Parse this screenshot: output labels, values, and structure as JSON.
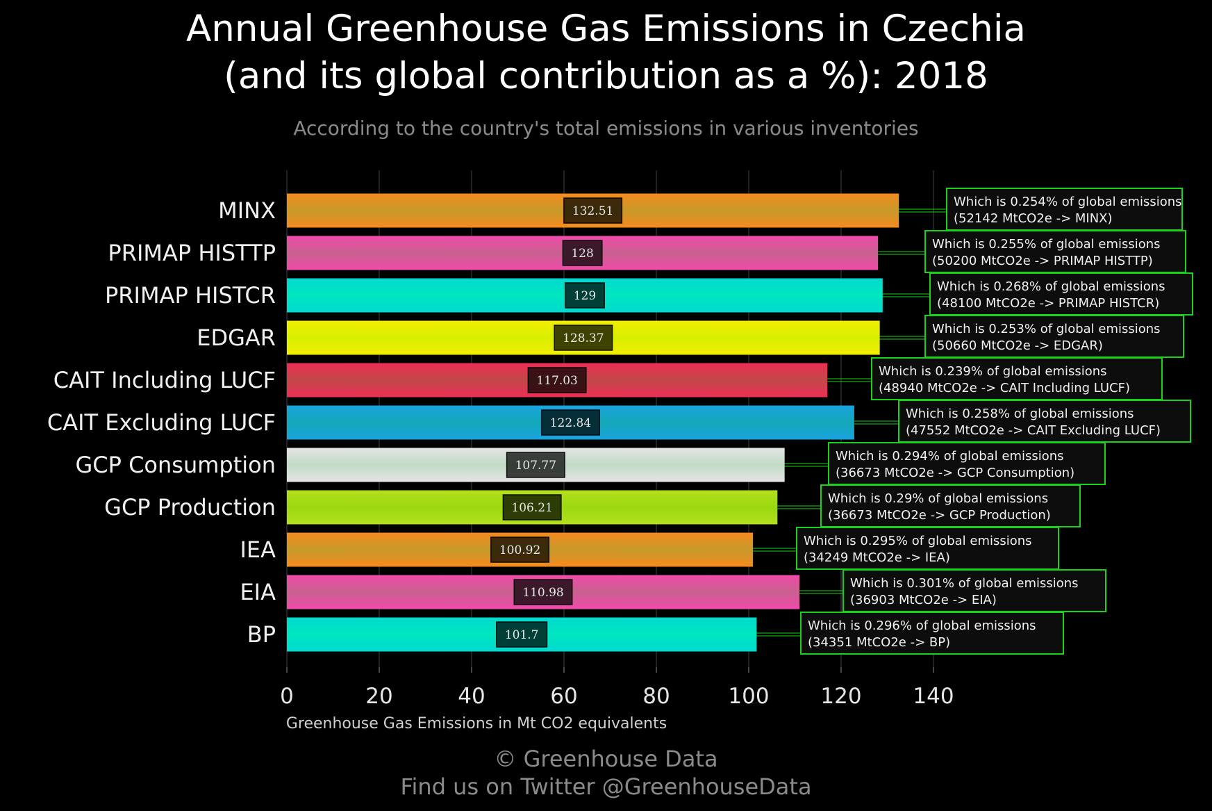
{
  "title_line1": "Annual Greenhouse Gas Emissions in Czechia",
  "title_line2": "(and its global contribution as a %): 2018",
  "subtitle": "According to the country's total emissions in various inventories",
  "footer_line1": "© Greenhouse Data",
  "footer_line2": "Find us on Twitter @GreenhouseData",
  "chart_data": {
    "type": "bar",
    "orientation": "horizontal",
    "xlabel": "Greenhouse Gas Emissions in Mt CO2 equivalents",
    "xlim": [
      0,
      150
    ],
    "xticks": [
      0,
      20,
      40,
      60,
      80,
      100,
      120,
      140
    ],
    "grid": "vertical",
    "categories": [
      "MINX",
      "PRIMAP HISTTP",
      "PRIMAP HISTCR",
      "EDGAR",
      "CAIT Including LUCF",
      "CAIT Excluding LUCF",
      "GCP Consumption",
      "GCP Production",
      "IEA",
      "EIA",
      "BP"
    ],
    "values": [
      132.51,
      128,
      129,
      128.37,
      117.03,
      122.84,
      107.77,
      106.21,
      100.92,
      110.98,
      101.7
    ],
    "value_labels": [
      "132.51",
      "128",
      "129",
      "128.37",
      "117.03",
      "122.84",
      "107.77",
      "106.21",
      "100.92",
      "110.98",
      "101.7"
    ],
    "annotations": [
      {
        "line1": "Which is 0.254% of global emissions",
        "line2": "(52142 MtCO2e -> MINX)"
      },
      {
        "line1": "Which is 0.255% of global emissions",
        "line2": "(50200 MtCO2e -> PRIMAP HISTTP)"
      },
      {
        "line1": "Which is 0.268% of global emissions",
        "line2": "(48100 MtCO2e -> PRIMAP HISTCR)"
      },
      {
        "line1": "Which is 0.253% of global emissions",
        "line2": "(50660 MtCO2e -> EDGAR)"
      },
      {
        "line1": "Which is 0.239% of global emissions",
        "line2": "(48940 MtCO2e -> CAIT Including LUCF)"
      },
      {
        "line1": "Which is 0.258% of global emissions",
        "line2": "(47552 MtCO2e -> CAIT Excluding LUCF)"
      },
      {
        "line1": "Which is 0.294% of global emissions",
        "line2": "(36673 MtCO2e -> GCP Consumption)"
      },
      {
        "line1": "Which is 0.29% of global emissions",
        "line2": "(36673 MtCO2e -> GCP Production)"
      },
      {
        "line1": "Which is 0.295% of global emissions",
        "line2": "(34249 MtCO2e -> IEA)"
      },
      {
        "line1": "Which is 0.301% of global emissions",
        "line2": "(36903 MtCO2e -> EIA)"
      },
      {
        "line1": "Which is 0.296% of global emissions",
        "line2": "(34351 MtCO2e -> BP)"
      }
    ],
    "colors": [
      [
        "#f58a1f",
        "#c79a2a"
      ],
      [
        "#f04aaa",
        "#c8608f"
      ],
      [
        "#00d9d0",
        "#00e6c0"
      ],
      [
        "#f2ee00",
        "#d8ef00"
      ],
      [
        "#ef2e55",
        "#c04848"
      ],
      [
        "#19a3df",
        "#14a8b8"
      ],
      [
        "#e4e4e4",
        "#c2dcc6"
      ],
      [
        "#b4e01c",
        "#9ad810"
      ],
      [
        "#f58a1f",
        "#c79a2a"
      ],
      [
        "#f04aaa",
        "#c8608f"
      ],
      [
        "#00d9d0",
        "#00e6c0"
      ]
    ],
    "annotation_border_color": "#19d219"
  }
}
